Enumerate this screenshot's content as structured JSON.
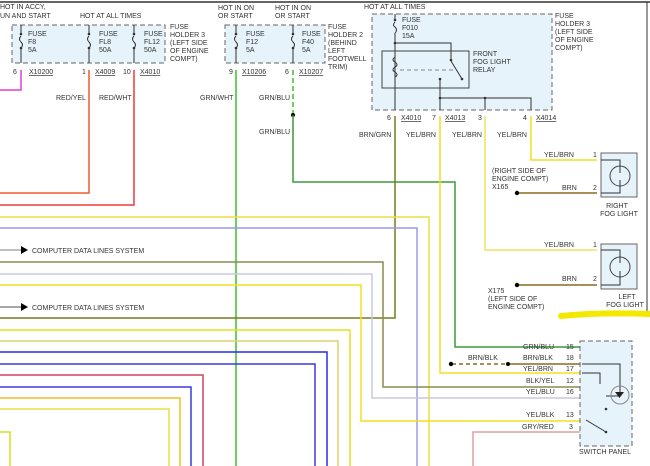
{
  "fuse_holder_3_left": {
    "supply_labels": [
      "HOT IN ACCY,",
      "UN AND START",
      "HOT AT ALL TIMES"
    ],
    "fuses": [
      {
        "name": "FUSE",
        "id": "F8",
        "rating": "5A",
        "pin": "6",
        "connector": "X10200"
      },
      {
        "name": "FUSE",
        "id": "FL8",
        "rating": "50A",
        "pin": "1",
        "connector": "X4009"
      },
      {
        "name": "FUSE",
        "id": "FL12",
        "rating": "50A",
        "pin": "10",
        "connector": "X4010"
      }
    ],
    "holder_label": [
      "FUSE",
      "HOLDER 3",
      "(LEFT SIDE",
      "OF ENGINE",
      "COMPT)"
    ],
    "wires": [
      "RED/YEL",
      "RED/WHT"
    ]
  },
  "fuse_holder_2": {
    "supply_labels": [
      "HOT IN ON",
      "OR START",
      "HOT IN ON",
      "OR START"
    ],
    "fuses": [
      {
        "name": "FUSE",
        "id": "F12",
        "rating": "5A",
        "pin": "9",
        "connector": "X10206"
      },
      {
        "name": "FUSE",
        "id": "F40",
        "rating": "5A",
        "pin": "6",
        "connector": "X10207"
      }
    ],
    "holder_label": [
      "FUSE",
      "HOLDER 2",
      "(BEHIND",
      "LEFT",
      "FOOTWELL",
      "TRIM)"
    ],
    "wires": [
      "GRN/WHT",
      "GRN/BLU",
      "GRN/BLU"
    ]
  },
  "fuse_holder_3_relay": {
    "supply_label": "HOT AT ALL TIMES",
    "fuse": {
      "name": "FUSE",
      "id": "F010",
      "rating": "15A"
    },
    "relay_label": [
      "FRONT",
      "FOG LIGHT",
      "RELAY"
    ],
    "holder_label": [
      "FUSE",
      "HOLDER 3",
      "(LEFT SIDE",
      "OF ENGINE",
      "COMPT)"
    ],
    "pins": [
      {
        "pin": "6",
        "connector": "X4010",
        "wire": "BRN/GRN"
      },
      {
        "pin": "7",
        "connector": "X4013",
        "wire": "YEL/BRN"
      },
      {
        "pin": "3",
        "connector": "",
        "wire": "YEL/BRN"
      },
      {
        "pin": "4",
        "connector": "X4014",
        "wire": "YEL/BRN"
      }
    ]
  },
  "fog_lights": {
    "right": {
      "name": [
        "RIGHT",
        "FOG LIGHT"
      ],
      "pin1": "1",
      "pin2": "2",
      "wire1": "YEL/BRN",
      "wire2": "BRN",
      "ground": [
        "(RIGHT SIDE OF",
        "ENGINE COMPT)",
        "X165"
      ]
    },
    "left": {
      "name": [
        "LEFT",
        "FOG LIGHT"
      ],
      "pin1": "1",
      "pin2": "2",
      "wire1": "YEL/BRN",
      "wire2": "BRN",
      "ground": [
        "X175",
        "(LEFT SIDE OF",
        "ENGINE COMPT)"
      ]
    }
  },
  "computer_data_lines": [
    "COMPUTER DATA LINES SYSTEM",
    "COMPUTER DATA LINES SYSTEM"
  ],
  "switch_panel": {
    "label": "SWITCH PANEL",
    "ground_wire": "BRN/BLK",
    "pins": [
      {
        "wire": "GRN/BLU",
        "pin": "15"
      },
      {
        "wire": "BRN/BLK",
        "pin": "18"
      },
      {
        "wire": "YEL/BRN",
        "pin": "17"
      },
      {
        "wire": "BLK/YEL",
        "pin": "12"
      },
      {
        "wire": "YEL/BLU",
        "pin": "16"
      },
      {
        "wire": "YEL/BLK",
        "pin": "13"
      },
      {
        "wire": "GRY/RED",
        "pin": "3"
      }
    ]
  },
  "colors": {
    "fuse_box_fill": "#e6f3fb",
    "highlight": "#f5e800"
  }
}
